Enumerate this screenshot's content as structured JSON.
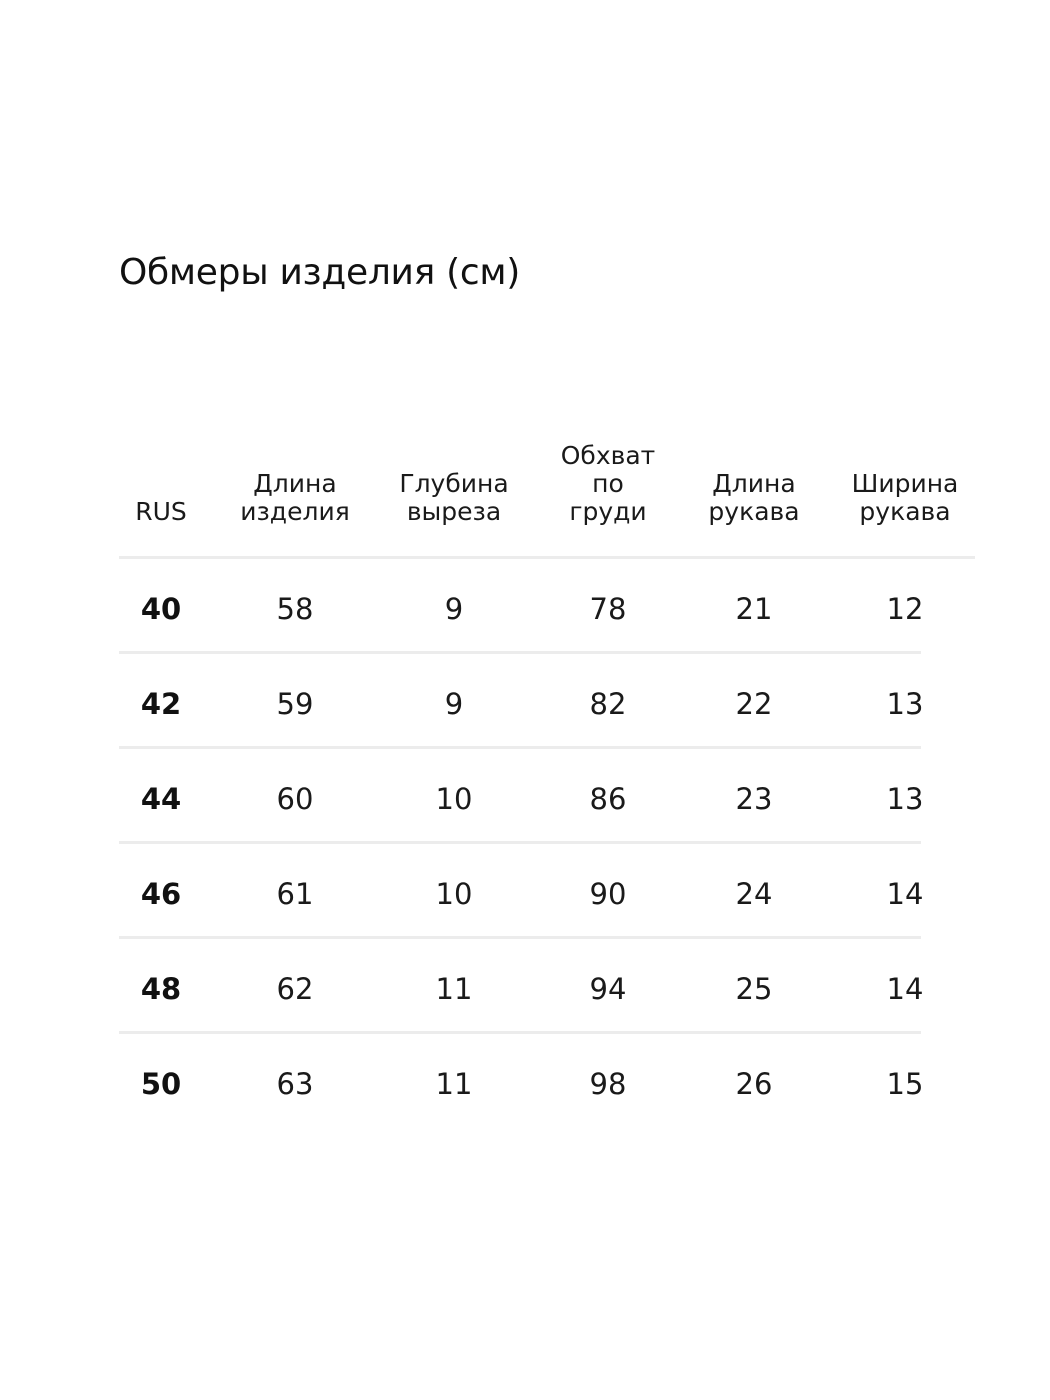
{
  "title": "Обмеры изделия (см)",
  "table": {
    "headers": [
      "RUS",
      "Длина\nизделия",
      "Глубина\nвыреза",
      "Обхват\nпо\nгруди",
      "Длина\nрукава",
      "Ширина\nрукава"
    ],
    "rows": [
      [
        "40",
        "58",
        "9",
        "78",
        "21",
        "12"
      ],
      [
        "42",
        "59",
        "9",
        "82",
        "22",
        "13"
      ],
      [
        "44",
        "60",
        "10",
        "86",
        "23",
        "13"
      ],
      [
        "46",
        "61",
        "10",
        "90",
        "24",
        "14"
      ],
      [
        "48",
        "62",
        "11",
        "94",
        "25",
        "14"
      ],
      [
        "50",
        "63",
        "11",
        "98",
        "26",
        "15"
      ]
    ]
  }
}
